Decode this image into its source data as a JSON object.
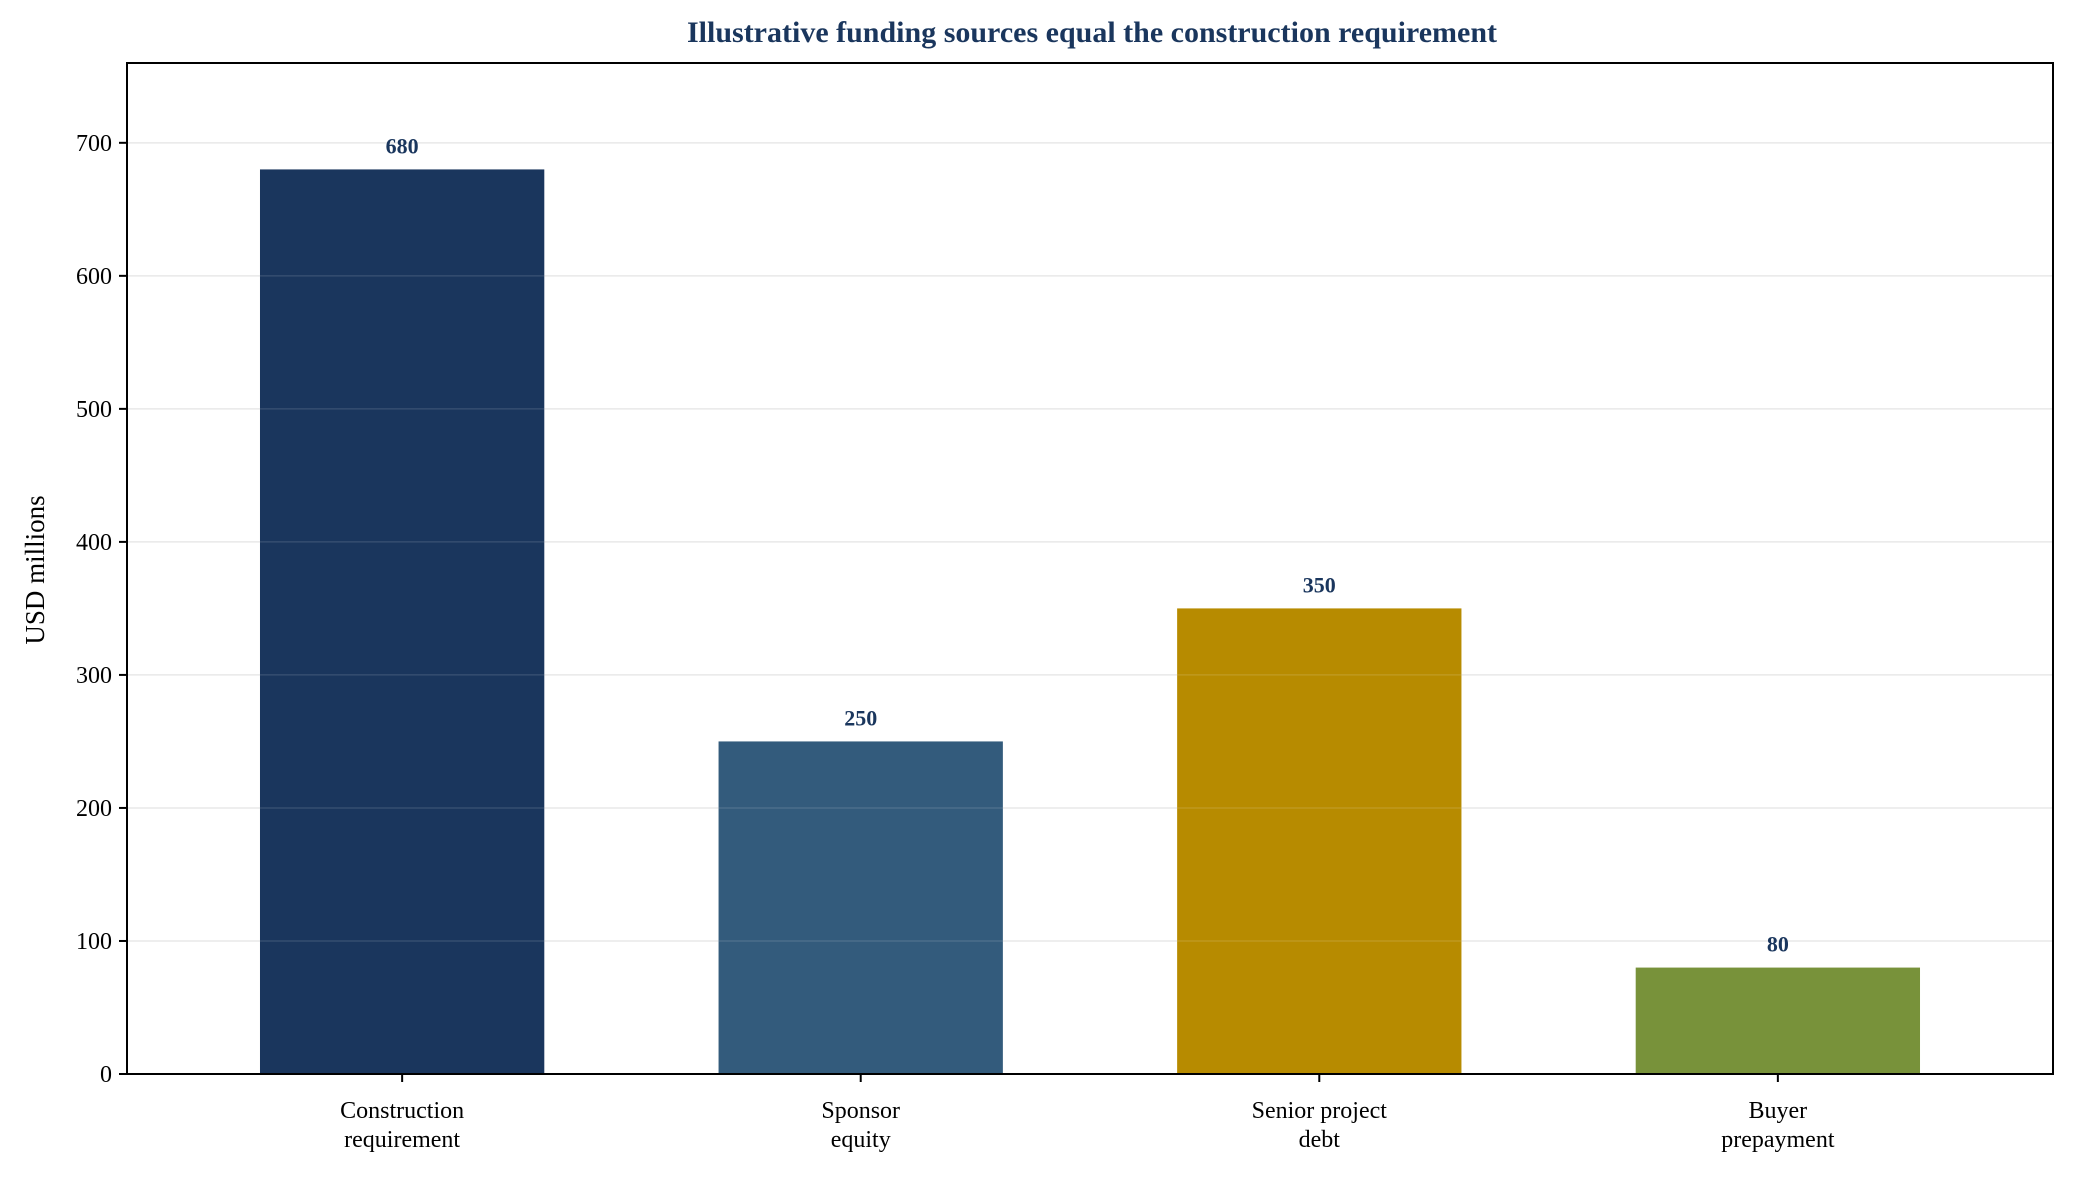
{
  "chart_data": {
    "type": "bar",
    "title": "Illustrative funding sources equal the construction requirement",
    "xlabel": "",
    "ylabel": "USD millions",
    "categories": [
      [
        "Construction",
        "requirement"
      ],
      [
        "Sponsor",
        "equity"
      ],
      [
        "Senior project",
        "debt"
      ],
      [
        "Buyer",
        "prepayment"
      ]
    ],
    "values": [
      680,
      250,
      350,
      80
    ],
    "data_labels": [
      "680",
      "250",
      "350",
      "80"
    ],
    "bar_colors": [
      "#1a365d",
      "#335b7c",
      "#b78b00",
      "#78923a"
    ],
    "ylim": [
      0,
      760
    ],
    "yticks": [
      0,
      100,
      200,
      300,
      400,
      500,
      600,
      700
    ],
    "grid": "horizontal",
    "legend": "none",
    "colors": {
      "title": "#1a365d",
      "data_label": "#1a365d",
      "axis": "#000000",
      "grid": "#e6e6e6"
    }
  }
}
